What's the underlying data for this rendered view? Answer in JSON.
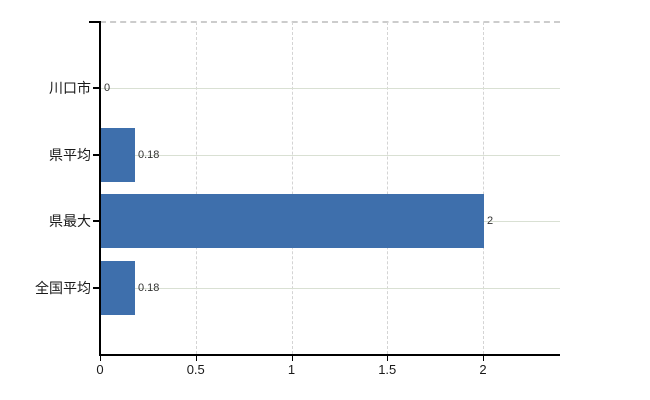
{
  "chart_data": {
    "type": "bar",
    "orientation": "horizontal",
    "title": "",
    "xlabel": "",
    "ylabel": "",
    "categories": [
      "川口市",
      "県平均",
      "県最大",
      "全国平均"
    ],
    "values": [
      0,
      0.18,
      2,
      0.18
    ],
    "value_labels": [
      "0",
      "0.18",
      "2",
      "0.18"
    ],
    "xticks": [
      0,
      0.5,
      1,
      1.5,
      2
    ],
    "xtick_labels": [
      "0",
      "0.5",
      "1",
      "1.5",
      "2"
    ],
    "xlim": [
      0,
      2.4
    ],
    "grid": {
      "horizontal": "solid",
      "vertical": "dashed",
      "top_border": "dashed"
    },
    "legend": "none",
    "colors": {
      "bar": "#3e6fac",
      "horizontal_grid": "#d9e0d3",
      "vertical_grid": "#d4d4d4",
      "axis": "#000000",
      "plot_top_border": "#cccccc",
      "label_text": "#1a1a1a",
      "value_text": "#333333",
      "background": "#ffffff"
    }
  }
}
